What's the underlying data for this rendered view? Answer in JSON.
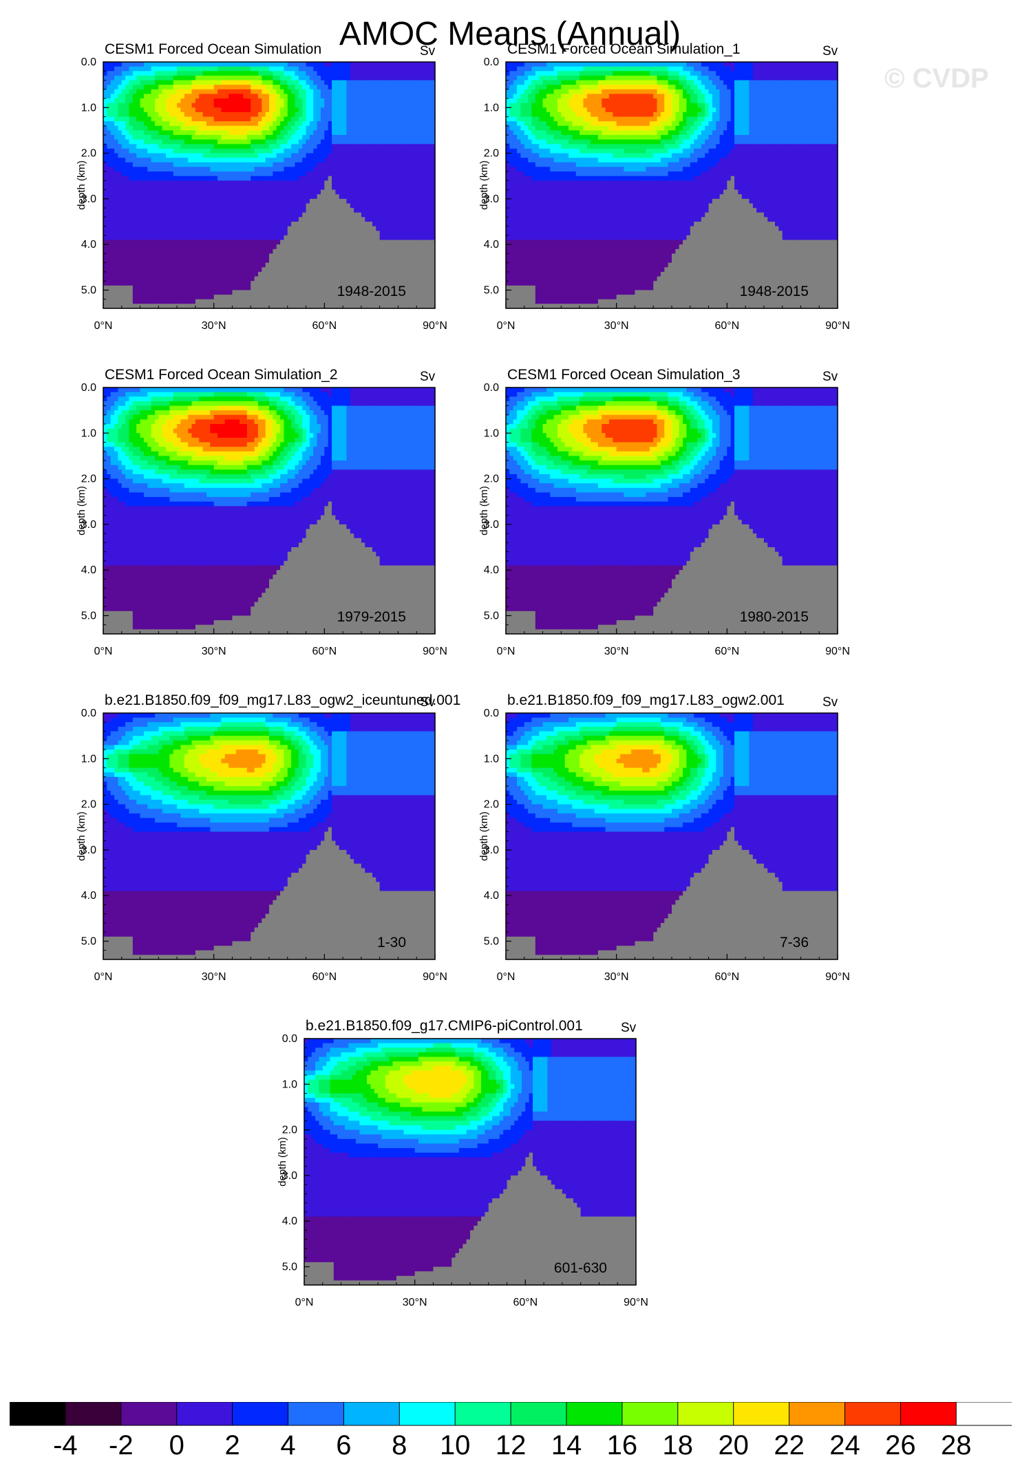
{
  "title": "AMOC Means (Annual)",
  "watermark": "© CVDP",
  "chart_data": {
    "type": "heatmap",
    "quantity": "AMOC streamfunction",
    "units": "Sv",
    "xlabel": "",
    "ylabel": "depth (km)",
    "xlim": [
      0,
      90
    ],
    "ylim": [
      5.4,
      0
    ],
    "x_ticks": [
      "0°N",
      "30°N",
      "60°N",
      "90°N"
    ],
    "y_ticks": [
      "0.0",
      "1.0",
      "2.0",
      "3.0",
      "4.0",
      "5.0"
    ],
    "contour_levels": [
      -4,
      -2,
      0,
      2,
      4,
      6,
      8,
      10,
      12,
      14,
      16,
      18,
      20,
      22,
      24,
      26,
      28
    ],
    "level_colors": [
      "#000000",
      "#3a003a",
      "#5a0a96",
      "#3c14dc",
      "#0028ff",
      "#1e6eff",
      "#00b4ff",
      "#00ffff",
      "#00ff96",
      "#00f060",
      "#00e600",
      "#78ff00",
      "#c8ff00",
      "#ffe600",
      "#ff9600",
      "#ff3c00",
      "#ff0000",
      "#ffffff"
    ],
    "land_color": "#808080",
    "panels": [
      {
        "name": "CESM1 Forced Ocean Simulation",
        "period": "1948-2015",
        "max_sv": 27,
        "max_lat": 37,
        "max_depth": 0.9
      },
      {
        "name": "CESM1 Forced Ocean Simulation_1",
        "period": "1948-2015",
        "max_sv": 26,
        "max_lat": 36,
        "max_depth": 0.9
      },
      {
        "name": "CESM1 Forced Ocean Simulation_2",
        "period": "1979-2015",
        "max_sv": 27,
        "max_lat": 36,
        "max_depth": 0.9
      },
      {
        "name": "CESM1 Forced Ocean Simulation_3",
        "period": "1980-2015",
        "max_sv": 26,
        "max_lat": 36,
        "max_depth": 0.9
      },
      {
        "name": "b.e21.B1850.f09_f09_mg17.L83_ogw2_iceuntuned.001",
        "period": "1-30",
        "max_sv": 23,
        "max_lat": 40,
        "max_depth": 1.0
      },
      {
        "name": "b.e21.B1850.f09_f09_mg17.L83_ogw2.001",
        "period": "7-36",
        "max_sv": 23,
        "max_lat": 38,
        "max_depth": 1.0
      },
      {
        "name": "b.e21.B1850.f09_g17.CMIP6-piControl.001",
        "period": "601-630",
        "max_sv": 22,
        "max_lat": 38,
        "max_depth": 0.9
      }
    ]
  }
}
